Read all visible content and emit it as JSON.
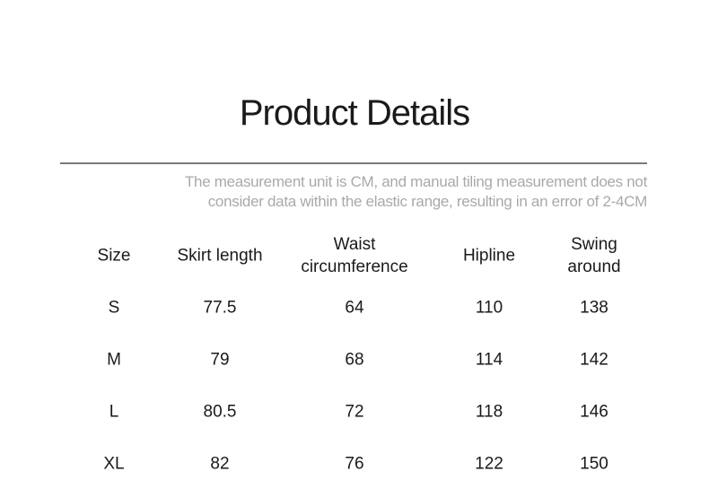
{
  "title": "Product Details",
  "note": "The measurement unit is CM, and manual tiling measurement does not consider data within the elastic range, resulting in an error of 2-4CM",
  "note_lines": [
    "The measurement unit is CM, and manual tiling measurement does not",
    "consider data within the elastic range, resulting in an error of 2-4CM"
  ],
  "table": {
    "headers": [
      [
        "Size"
      ],
      [
        "Skirt length"
      ],
      [
        "Waist",
        "circumference"
      ],
      [
        "Hipline"
      ],
      [
        "Swing",
        "around"
      ]
    ],
    "rows": [
      [
        "S",
        "77.5",
        "64",
        "110",
        "138"
      ],
      [
        "M",
        "79",
        "68",
        "114",
        "142"
      ],
      [
        "L",
        "80.5",
        "72",
        "118",
        "146"
      ],
      [
        "XL",
        "82",
        "76",
        "122",
        "150"
      ]
    ]
  }
}
